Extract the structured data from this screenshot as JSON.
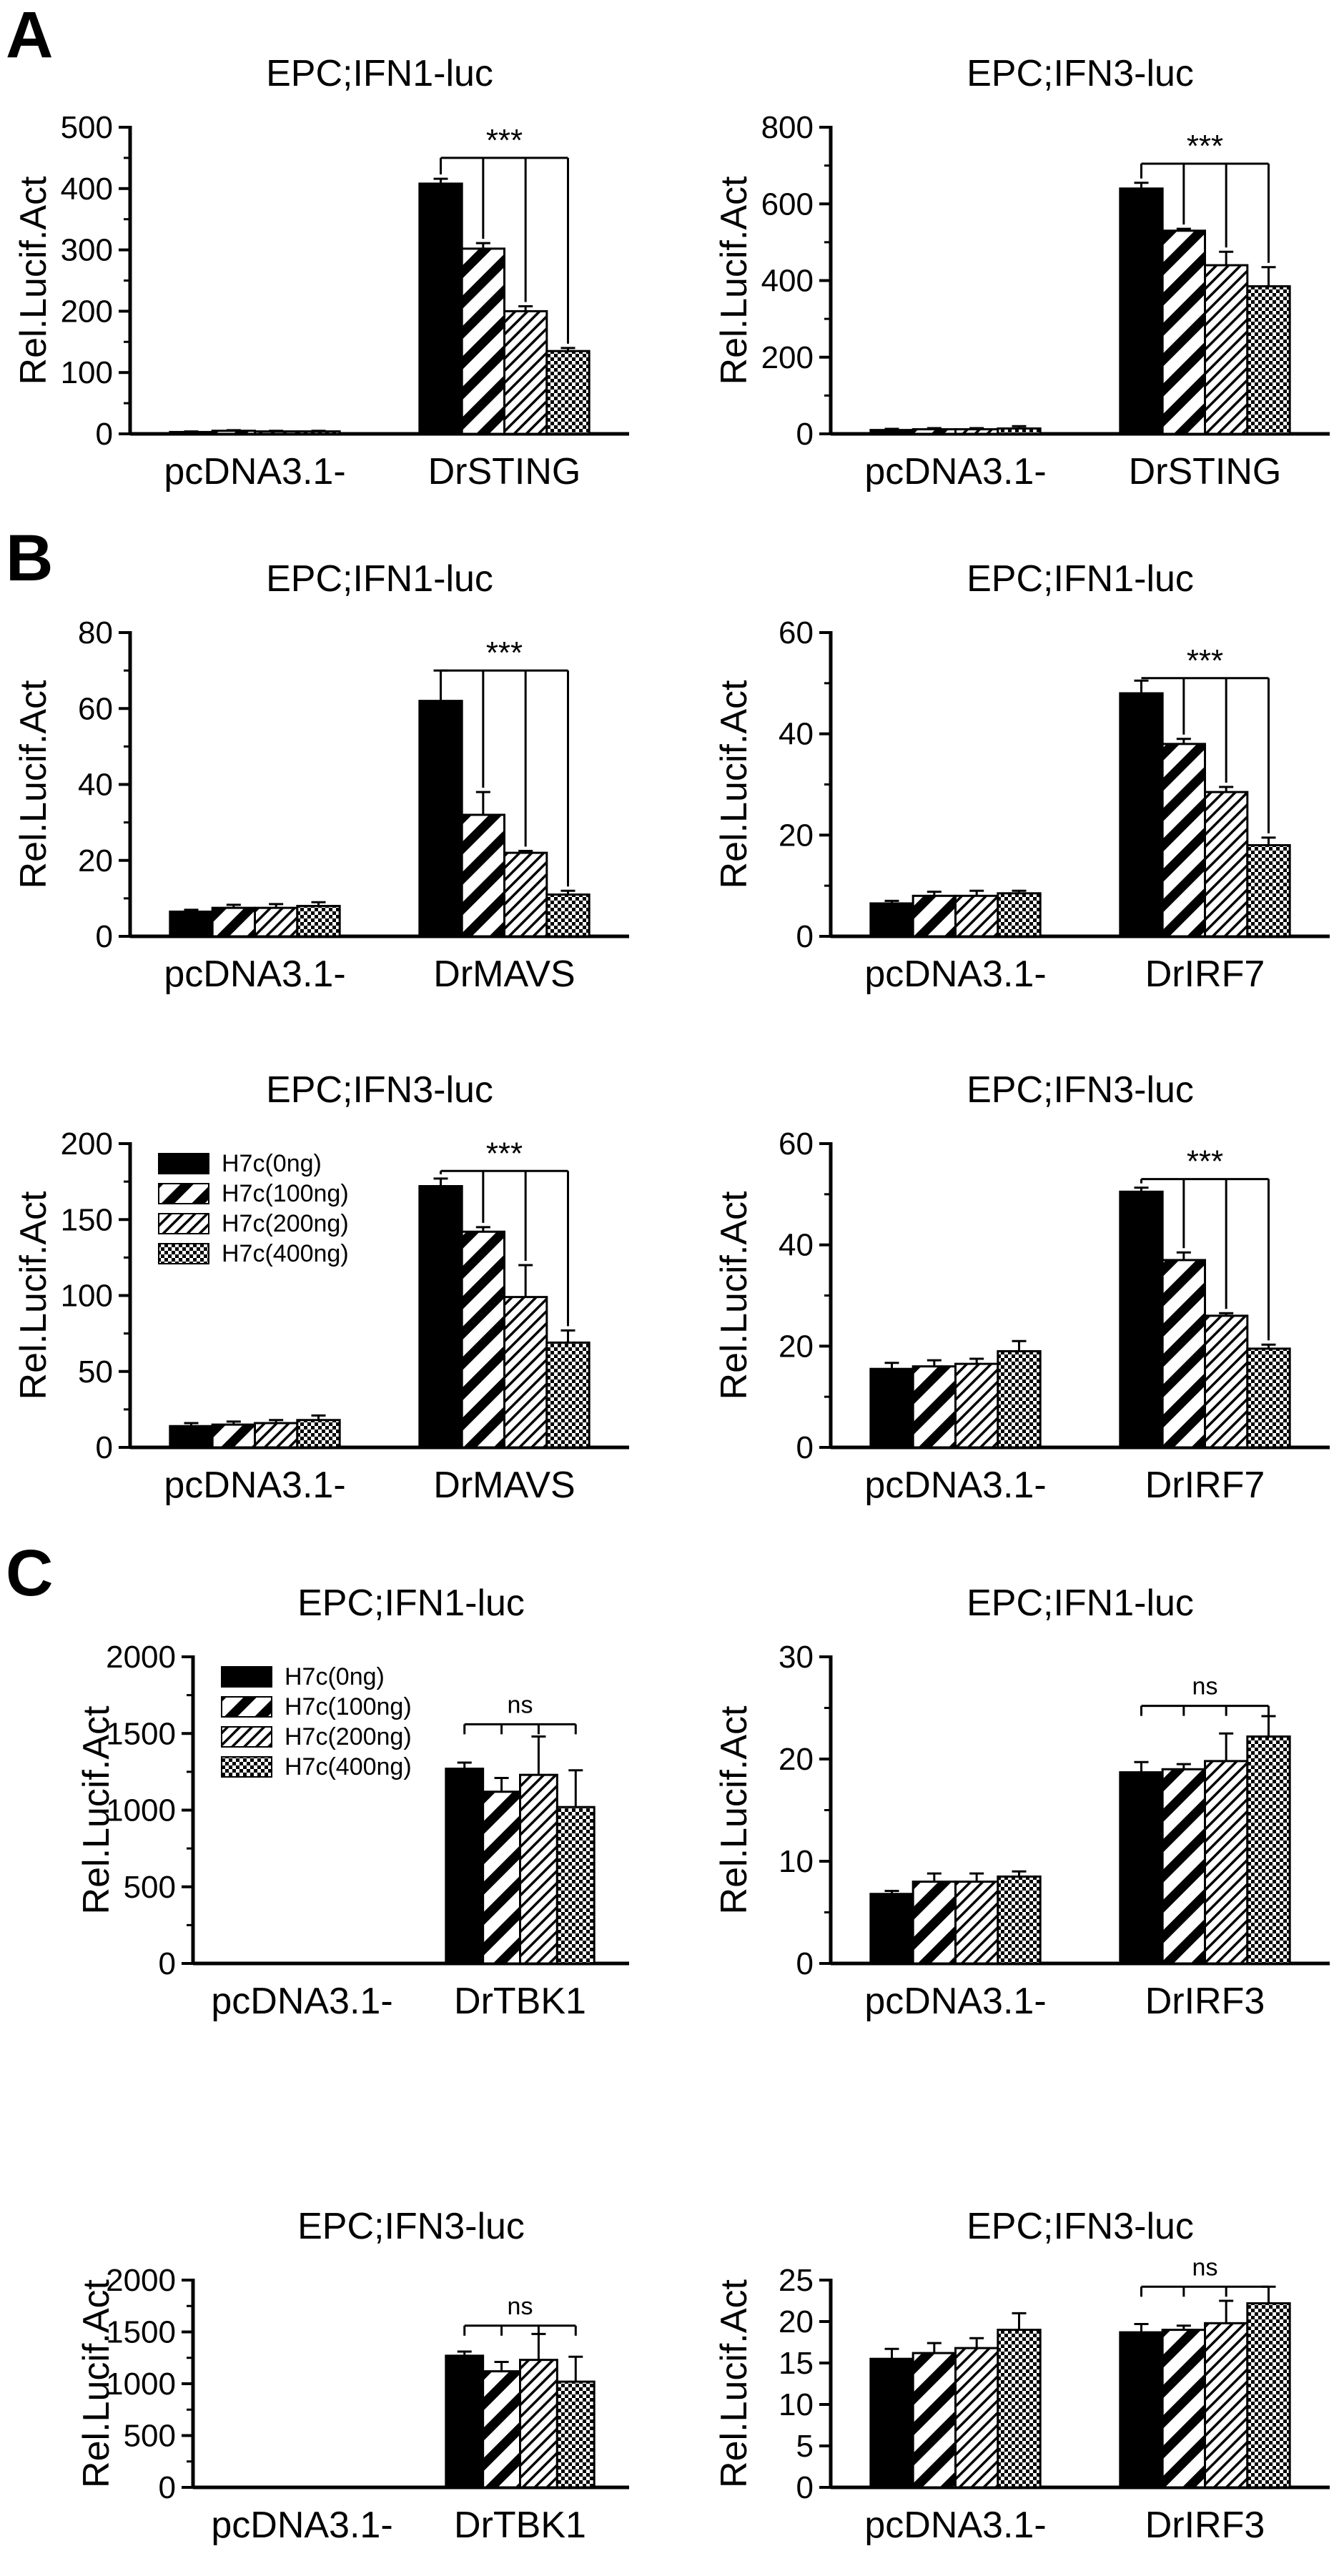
{
  "panels": [
    {
      "letter": "A"
    },
    {
      "letter": "B"
    },
    {
      "letter": "C"
    }
  ],
  "legend": {
    "entries": [
      "H7c(0ng)",
      "H7c(100ng)",
      "H7c(200ng)",
      "H7c(400ng)"
    ],
    "patterns": [
      "solid",
      "diagonal-thick",
      "diagonal-thin",
      "checker"
    ]
  },
  "chart_data": [
    {
      "type": "bar",
      "panel": "A",
      "title": "EPC;IFN1-luc",
      "ylabel": "Rel.Lucif.Act",
      "ylim": [
        0,
        500
      ],
      "yticks": [
        "0",
        "100",
        "200",
        "300",
        "400",
        "500"
      ],
      "minor": 2,
      "categories": [
        "pcDNA3.1-",
        "DrSTING"
      ],
      "series": [
        {
          "name": "H7c(0ng)",
          "values": [
            3,
            408
          ],
          "errors": [
            1,
            8
          ]
        },
        {
          "name": "H7c(100ng)",
          "values": [
            5,
            302
          ],
          "errors": [
            1,
            9
          ]
        },
        {
          "name": "H7c(200ng)",
          "values": [
            4,
            200
          ],
          "errors": [
            1,
            8
          ]
        },
        {
          "name": "H7c(400ng)",
          "values": [
            4,
            135
          ],
          "errors": [
            1,
            5
          ]
        }
      ],
      "significance": {
        "label": "***",
        "y": 450
      }
    },
    {
      "type": "bar",
      "panel": "A",
      "title": "EPC;IFN3-luc",
      "ylabel": "Rel.Lucif.Act",
      "ylim": [
        0,
        800
      ],
      "yticks": [
        "0",
        "200",
        "400",
        "600",
        "800"
      ],
      "minor": 2,
      "categories": [
        "pcDNA3.1-",
        "DrSTING"
      ],
      "series": [
        {
          "name": "H7c(0ng)",
          "values": [
            10,
            640
          ],
          "errors": [
            3,
            15
          ]
        },
        {
          "name": "H7c(100ng)",
          "values": [
            12,
            530
          ],
          "errors": [
            3,
            5
          ]
        },
        {
          "name": "H7c(200ng)",
          "values": [
            12,
            440
          ],
          "errors": [
            3,
            35
          ]
        },
        {
          "name": "H7c(400ng)",
          "values": [
            14,
            385
          ],
          "errors": [
            6,
            50
          ]
        }
      ],
      "significance": {
        "label": "***",
        "y": 705
      }
    },
    {
      "type": "bar",
      "panel": "B",
      "title": "EPC;IFN1-luc",
      "ylabel": "Rel.Lucif.Act",
      "ylim": [
        0,
        80
      ],
      "yticks": [
        "0",
        "20",
        "40",
        "60",
        "80"
      ],
      "minor": 2,
      "categories": [
        "pcDNA3.1-",
        "DrMAVS"
      ],
      "series": [
        {
          "name": "H7c(0ng)",
          "values": [
            6.5,
            62
          ],
          "errors": [
            0.5,
            8
          ]
        },
        {
          "name": "H7c(100ng)",
          "values": [
            7.5,
            32
          ],
          "errors": [
            0.8,
            6
          ]
        },
        {
          "name": "H7c(200ng)",
          "values": [
            7.5,
            22
          ],
          "errors": [
            1.0,
            0.5
          ]
        },
        {
          "name": "H7c(400ng)",
          "values": [
            8,
            11
          ],
          "errors": [
            1.0,
            1
          ]
        }
      ],
      "significance": {
        "label": "***",
        "y": 70
      }
    },
    {
      "type": "bar",
      "panel": "B",
      "title": "EPC;IFN1-luc",
      "ylabel": "Rel.Lucif.Act",
      "ylim": [
        0,
        60
      ],
      "yticks": [
        "0",
        "20",
        "40",
        "60"
      ],
      "minor": 2,
      "categories": [
        "pcDNA3.1-",
        "DrIRF7"
      ],
      "series": [
        {
          "name": "H7c(0ng)",
          "values": [
            6.5,
            48
          ],
          "errors": [
            0.5,
            2.5
          ]
        },
        {
          "name": "H7c(100ng)",
          "values": [
            8,
            38
          ],
          "errors": [
            0.8,
            1
          ]
        },
        {
          "name": "H7c(200ng)",
          "values": [
            8,
            28.5
          ],
          "errors": [
            1.0,
            1
          ]
        },
        {
          "name": "H7c(400ng)",
          "values": [
            8.5,
            18
          ],
          "errors": [
            0.5,
            1.5
          ]
        }
      ],
      "significance": {
        "label": "***",
        "y": 51
      }
    },
    {
      "type": "bar",
      "panel": "B",
      "title": "EPC;IFN3-luc",
      "ylabel": "Rel.Lucif.Act",
      "ylim": [
        0,
        200
      ],
      "yticks": [
        "0",
        "50",
        "100",
        "150",
        "200"
      ],
      "minor": 2,
      "categories": [
        "pcDNA3.1-",
        "DrMAVS"
      ],
      "series": [
        {
          "name": "H7c(0ng)",
          "values": [
            14,
            172
          ],
          "errors": [
            2,
            5
          ]
        },
        {
          "name": "H7c(100ng)",
          "values": [
            15,
            142
          ],
          "errors": [
            2,
            3
          ]
        },
        {
          "name": "H7c(200ng)",
          "values": [
            16,
            99
          ],
          "errors": [
            2,
            21
          ]
        },
        {
          "name": "H7c(400ng)",
          "values": [
            18,
            69
          ],
          "errors": [
            3,
            8
          ]
        }
      ],
      "significance": {
        "label": "***",
        "y": 182
      },
      "legend_here": true
    },
    {
      "type": "bar",
      "panel": "B",
      "title": "EPC;IFN3-luc",
      "ylabel": "Rel.Lucif.Act",
      "ylim": [
        0,
        60
      ],
      "yticks": [
        "0",
        "20",
        "40",
        "60"
      ],
      "minor": 2,
      "categories": [
        "pcDNA3.1-",
        "DrIRF7"
      ],
      "series": [
        {
          "name": "H7c(0ng)",
          "values": [
            15.5,
            50.5
          ],
          "errors": [
            1.2,
            0.8
          ]
        },
        {
          "name": "H7c(100ng)",
          "values": [
            16,
            37
          ],
          "errors": [
            1.2,
            1.5
          ]
        },
        {
          "name": "H7c(200ng)",
          "values": [
            16.5,
            26
          ],
          "errors": [
            1.0,
            0.5
          ]
        },
        {
          "name": "H7c(400ng)",
          "values": [
            19,
            19.5
          ],
          "errors": [
            2.0,
            0.8
          ]
        }
      ],
      "significance": {
        "label": "***",
        "y": 53
      }
    },
    {
      "type": "bar",
      "panel": "C",
      "title": "EPC;IFN1-luc",
      "ylabel": "Rel.Lucif.Act",
      "ylim": [
        0,
        2000
      ],
      "yticks": [
        "0",
        "500",
        "1000",
        "1500",
        "2000"
      ],
      "minor": 2,
      "categories": [
        "pcDNA3.1-",
        "DrTBK1"
      ],
      "series": [
        {
          "name": "H7c(0ng)",
          "values": [
            2,
            1270
          ],
          "errors": [
            1,
            40
          ]
        },
        {
          "name": "H7c(100ng)",
          "values": [
            2,
            1120
          ],
          "errors": [
            1,
            90
          ]
        },
        {
          "name": "H7c(200ng)",
          "values": [
            2,
            1230
          ],
          "errors": [
            1,
            250
          ]
        },
        {
          "name": "H7c(400ng)",
          "values": [
            2,
            1020
          ],
          "errors": [
            1,
            240
          ]
        }
      ],
      "significance": {
        "label": "ns",
        "y": 1560
      },
      "legend_here": true
    },
    {
      "type": "bar",
      "panel": "C",
      "title": "EPC;IFN1-luc",
      "ylabel": "Rel.Lucif.Act",
      "ylim": [
        0,
        30
      ],
      "yticks": [
        "0",
        "10",
        "20",
        "30"
      ],
      "minor": 2,
      "categories": [
        "pcDNA3.1-",
        "DrIRF3"
      ],
      "series": [
        {
          "name": "H7c(0ng)",
          "values": [
            6.8,
            18.7
          ],
          "errors": [
            0.3,
            1.0
          ]
        },
        {
          "name": "H7c(100ng)",
          "values": [
            8,
            19
          ],
          "errors": [
            0.8,
            0.5
          ]
        },
        {
          "name": "H7c(200ng)",
          "values": [
            8,
            19.8
          ],
          "errors": [
            0.8,
            2.7
          ]
        },
        {
          "name": "H7c(400ng)",
          "values": [
            8.5,
            22.2
          ],
          "errors": [
            0.5,
            2.0
          ]
        }
      ],
      "significance": {
        "label": "ns",
        "y": 25.2
      }
    },
    {
      "type": "bar",
      "panel": "C",
      "title": "EPC;IFN3-luc",
      "ylabel": "Rel.Lucif.Act",
      "ylim": [
        0,
        2000
      ],
      "yticks": [
        "0",
        "500",
        "1000",
        "1500",
        "2000"
      ],
      "minor": 2,
      "categories": [
        "pcDNA3.1-",
        "DrTBK1"
      ],
      "series": [
        {
          "name": "H7c(0ng)",
          "values": [
            3,
            1270
          ],
          "errors": [
            1,
            40
          ]
        },
        {
          "name": "H7c(100ng)",
          "values": [
            3,
            1120
          ],
          "errors": [
            1,
            90
          ]
        },
        {
          "name": "H7c(200ng)",
          "values": [
            3,
            1230
          ],
          "errors": [
            1,
            250
          ]
        },
        {
          "name": "H7c(400ng)",
          "values": [
            5,
            1020
          ],
          "errors": [
            2,
            240
          ]
        }
      ],
      "significance": {
        "label": "ns",
        "y": 1560
      }
    },
    {
      "type": "bar",
      "panel": "C",
      "title": "EPC;IFN3-luc",
      "ylabel": "Rel.Lucif.Act",
      "ylim": [
        0,
        25
      ],
      "yticks": [
        "0",
        "5",
        "10",
        "15",
        "20",
        "25"
      ],
      "minor": 1,
      "categories": [
        "pcDNA3.1-",
        "DrIRF3"
      ],
      "series": [
        {
          "name": "H7c(0ng)",
          "values": [
            15.5,
            18.7
          ],
          "errors": [
            1.2,
            1.0
          ]
        },
        {
          "name": "H7c(100ng)",
          "values": [
            16.2,
            19
          ],
          "errors": [
            1.2,
            0.5
          ]
        },
        {
          "name": "H7c(200ng)",
          "values": [
            16.8,
            19.8
          ],
          "errors": [
            1.2,
            2.7
          ]
        },
        {
          "name": "H7c(400ng)",
          "values": [
            19,
            22.2
          ],
          "errors": [
            2.0,
            2.0
          ]
        }
      ],
      "significance": {
        "label": "ns",
        "y": 24.2
      }
    }
  ]
}
